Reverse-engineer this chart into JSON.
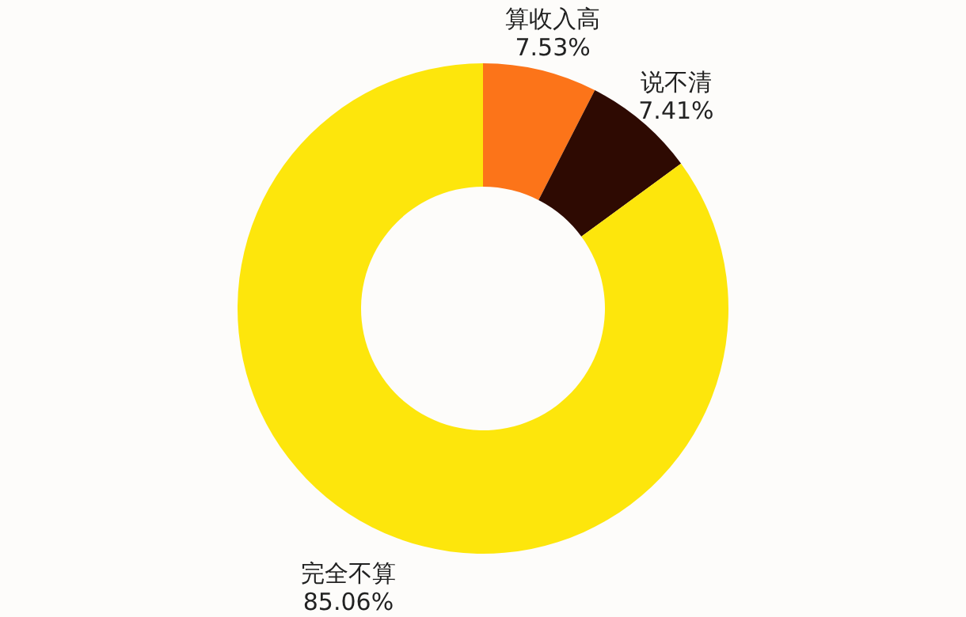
{
  "chart_data": {
    "type": "donut",
    "categories": [
      "算收入高",
      "说不清",
      "完全不算"
    ],
    "values": [
      7.53,
      7.41,
      85.06
    ],
    "colors": [
      "#fc7419",
      "#2e0a02",
      "#fde60c"
    ],
    "value_labels": [
      "7.53%",
      "7.41%",
      "85.06%"
    ]
  }
}
